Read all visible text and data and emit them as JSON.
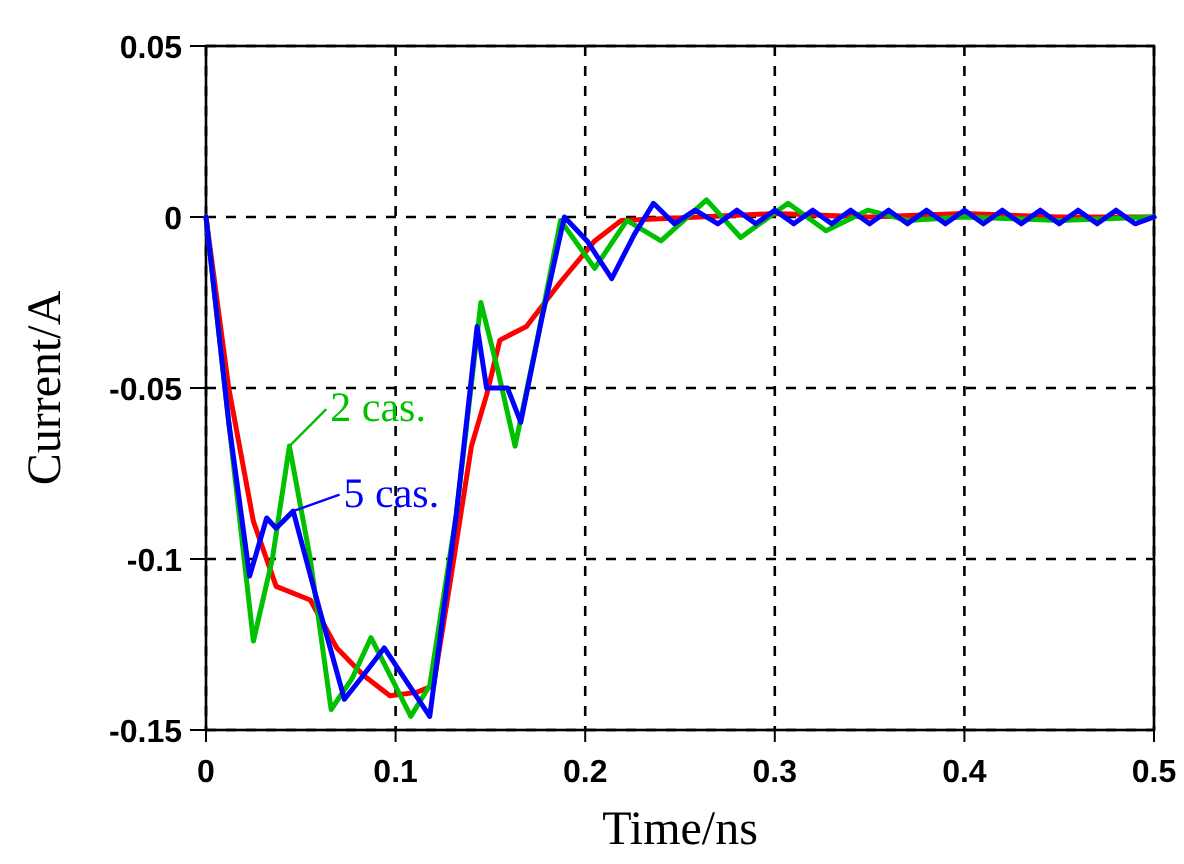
{
  "chart_data": {
    "type": "line",
    "xlabel": "Time/ns",
    "ylabel": "Current/A",
    "xlim": [
      0,
      0.5
    ],
    "ylim": [
      -0.15,
      0.05
    ],
    "xticks": [
      0,
      0.1,
      0.2,
      0.3,
      0.4,
      0.5
    ],
    "yticks": [
      0.05,
      0,
      -0.05,
      -0.1,
      -0.15
    ],
    "grid": true,
    "legend": "left",
    "line_style": "solid",
    "marker": "none",
    "series": [
      {
        "color": "#ff0000",
        "x": [
          0,
          0.012,
          0.025,
          0.037,
          0.055,
          0.069,
          0.083,
          0.097,
          0.111,
          0.12,
          0.129,
          0.14,
          0.148,
          0.155,
          0.169,
          0.187,
          0.205,
          0.219,
          0.26,
          0.3,
          0.35,
          0.4,
          0.45,
          0.5
        ],
        "values": [
          0,
          -0.05,
          -0.089,
          -0.108,
          -0.112,
          -0.126,
          -0.134,
          -0.14,
          -0.139,
          -0.137,
          -0.106,
          -0.067,
          -0.052,
          -0.036,
          -0.032,
          -0.019,
          -0.007,
          -0.001,
          0,
          0.001,
          0,
          0.001,
          0,
          0
        ]
      },
      {
        "name": "2 cas.",
        "color": "#00c000",
        "x": [
          0,
          0.012,
          0.025,
          0.035,
          0.044,
          0.055,
          0.066,
          0.077,
          0.087,
          0.098,
          0.108,
          0.118,
          0.132,
          0.145,
          0.154,
          0.163,
          0.175,
          0.187,
          0.205,
          0.222,
          0.24,
          0.264,
          0.282,
          0.307,
          0.327,
          0.349,
          0.37,
          0.4,
          0.45,
          0.5
        ],
        "values": [
          0,
          -0.06,
          -0.124,
          -0.1,
          -0.067,
          -0.1,
          -0.144,
          -0.135,
          -0.123,
          -0.135,
          -0.146,
          -0.137,
          -0.087,
          -0.025,
          -0.045,
          -0.067,
          -0.035,
          -0.001,
          -0.015,
          -0.001,
          -0.007,
          0.005,
          -0.006,
          0.004,
          -0.004,
          0.002,
          -0.001,
          0,
          -0.001,
          0
        ]
      },
      {
        "name": "5 cas.",
        "color": "#0000ff",
        "x": [
          0,
          0.012,
          0.023,
          0.032,
          0.037,
          0.046,
          0.06,
          0.073,
          0.083,
          0.094,
          0.106,
          0.118,
          0.132,
          0.143,
          0.148,
          0.159,
          0.166,
          0.177,
          0.189,
          0.201,
          0.214,
          0.226,
          0.236,
          0.247,
          0.258,
          0.27,
          0.28,
          0.29,
          0.3,
          0.31,
          0.32,
          0.33,
          0.34,
          0.35,
          0.36,
          0.37,
          0.38,
          0.39,
          0.4,
          0.41,
          0.42,
          0.43,
          0.44,
          0.45,
          0.46,
          0.47,
          0.48,
          0.49,
          0.5
        ],
        "values": [
          0,
          -0.06,
          -0.105,
          -0.088,
          -0.091,
          -0.086,
          -0.115,
          -0.141,
          -0.134,
          -0.126,
          -0.136,
          -0.146,
          -0.087,
          -0.032,
          -0.05,
          -0.05,
          -0.06,
          -0.03,
          0,
          -0.007,
          -0.018,
          -0.005,
          0.004,
          -0.002,
          0.002,
          -0.002,
          0.002,
          -0.002,
          0.002,
          -0.002,
          0.002,
          -0.002,
          0.002,
          -0.002,
          0.002,
          -0.002,
          0.002,
          -0.002,
          0.002,
          -0.002,
          0.002,
          -0.002,
          0.002,
          -0.002,
          0.002,
          -0.002,
          0.002,
          -0.002,
          0
        ]
      }
    ]
  }
}
